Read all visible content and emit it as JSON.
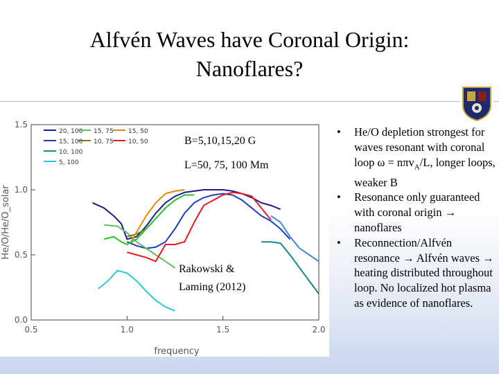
{
  "slide": {
    "title_line1": "Alfvén Waves have Coronal Origin:",
    "title_line2": "Nanoflares?",
    "bullets": [
      "He/O depletion strongest for waves resonant with coronal loop ω = nπvA/L, longer loops, weaker B",
      "Resonance only guaranteed with coronal origin → nanoflares",
      "Reconnection/Alfvén resonance → Alfvén waves → heating distributed throughout loop. No localized hot plasma as evidence of nanoflares."
    ],
    "bullet1_parts": {
      "a": "He/O depletion strongest for waves resonant with coronal loop ω = nπv",
      "sub": "A",
      "b": "/L, longer loops, weaker B"
    },
    "bullet2_parts": {
      "a": "Resonance only guaranteed with coronal origin ",
      "arrow": "→",
      "b": " nanoflares"
    },
    "bullet3_parts": {
      "a": "Reconnection/Alfvén resonance ",
      "arrow1": "→",
      "b": " Alfvén waves ",
      "arrow2": "→",
      "c": " heating distributed throughout loop. No localized hot plasma as evidence of nanoflares."
    }
  },
  "figure_annotations": {
    "field": "B=5,10,15,20 G",
    "length": "L=50, 75, 100 Mm",
    "citation_line1": "Rakowski &",
    "citation_line2": "Laming (2012)"
  },
  "chart_data": {
    "type": "line",
    "xlabel": "frequency",
    "ylabel": "He/O/He/O_solar",
    "xlim": [
      0.5,
      2.0
    ],
    "ylim": [
      0.0,
      1.5
    ],
    "xticks": [
      "0.5",
      "1.0",
      "1.5",
      "2.0"
    ],
    "yticks": [
      "0.0",
      "0.5",
      "1.0",
      "1.5"
    ],
    "legend_position": "top-left",
    "series": [
      {
        "name": "20, 100",
        "color": "#1f1a8a",
        "x": [
          0.82,
          0.88,
          0.93,
          0.97,
          1.0,
          1.05,
          1.1,
          1.15,
          1.2,
          1.25,
          1.3,
          1.35,
          1.4,
          1.45,
          1.5,
          1.55,
          1.6,
          1.65,
          1.7,
          1.75,
          1.8
        ],
        "y": [
          0.9,
          0.86,
          0.8,
          0.74,
          0.62,
          0.64,
          0.72,
          0.82,
          0.9,
          0.95,
          0.98,
          0.99,
          1.0,
          1.0,
          1.0,
          0.99,
          0.97,
          0.94,
          0.9,
          0.88,
          0.85
        ]
      },
      {
        "name": "15, 100",
        "color": "#1c3cc8",
        "x": [
          1.0,
          1.05,
          1.1,
          1.15,
          1.2,
          1.25,
          1.3,
          1.35,
          1.4,
          1.45,
          1.5,
          1.55,
          1.6,
          1.65,
          1.7,
          1.75,
          1.8,
          1.85
        ],
        "y": [
          0.6,
          0.57,
          0.55,
          0.56,
          0.6,
          0.7,
          0.82,
          0.9,
          0.94,
          0.96,
          0.97,
          0.96,
          0.92,
          0.86,
          0.8,
          0.76,
          0.7,
          0.62
        ]
      },
      {
        "name": "10, 100",
        "color": "#138a8a",
        "x": [
          1.7,
          1.75,
          1.8,
          1.85,
          1.9,
          1.95,
          2.0
        ],
        "y": [
          0.6,
          0.6,
          0.59,
          0.5,
          0.4,
          0.3,
          0.2
        ]
      },
      {
        "name": "5, 100",
        "color": "#27c8d8",
        "x": [
          0.85,
          0.9,
          0.95,
          1.0,
          1.05,
          1.1,
          1.15,
          1.2,
          1.25
        ],
        "y": [
          0.24,
          0.3,
          0.38,
          0.36,
          0.3,
          0.22,
          0.15,
          0.1,
          0.07
        ]
      },
      {
        "name": "15, 75",
        "color": "#5cbf5c",
        "x": [
          0.88,
          0.95,
          1.0,
          1.05,
          1.1,
          1.15,
          1.2,
          1.25
        ],
        "y": [
          0.73,
          0.72,
          0.67,
          0.6,
          0.55,
          0.5,
          0.45,
          0.4
        ]
      },
      {
        "name": "10, 75",
        "color": "#7a7a1a",
        "x": [
          1.0,
          1.05,
          1.1
        ],
        "y": [
          0.64,
          0.66,
          0.7
        ]
      },
      {
        "name": "15, 50",
        "color": "#e08a10",
        "x": [
          1.02,
          1.06,
          1.1,
          1.15,
          1.2,
          1.25,
          1.3
        ],
        "y": [
          0.6,
          0.7,
          0.8,
          0.9,
          0.97,
          0.99,
          1.0
        ]
      },
      {
        "name": "10, 50",
        "color": "#e81818",
        "x": [
          1.0,
          1.05,
          1.1,
          1.15,
          1.2,
          1.25,
          1.3,
          1.35,
          1.4,
          1.45,
          1.5,
          1.55,
          1.6,
          1.65,
          1.7,
          1.75
        ],
        "y": [
          0.52,
          0.5,
          0.48,
          0.45,
          0.58,
          0.58,
          0.6,
          0.75,
          0.88,
          0.92,
          0.96,
          0.98,
          0.97,
          0.95,
          0.86,
          0.77
        ]
      },
      {
        "name": "",
        "color": "#22c822",
        "x": [
          0.88,
          0.93,
          0.97,
          1.0,
          1.05,
          1.1,
          1.15,
          1.2,
          1.25,
          1.3,
          1.35
        ],
        "y": [
          0.62,
          0.64,
          0.6,
          0.58,
          0.62,
          0.7,
          0.78,
          0.86,
          0.92,
          0.96,
          0.96
        ]
      },
      {
        "name": "",
        "color": "#3a8ad8",
        "x": [
          1.75,
          1.8,
          1.85,
          1.9,
          1.95,
          2.0
        ],
        "y": [
          0.8,
          0.75,
          0.64,
          0.55,
          0.5,
          0.45
        ]
      }
    ]
  }
}
